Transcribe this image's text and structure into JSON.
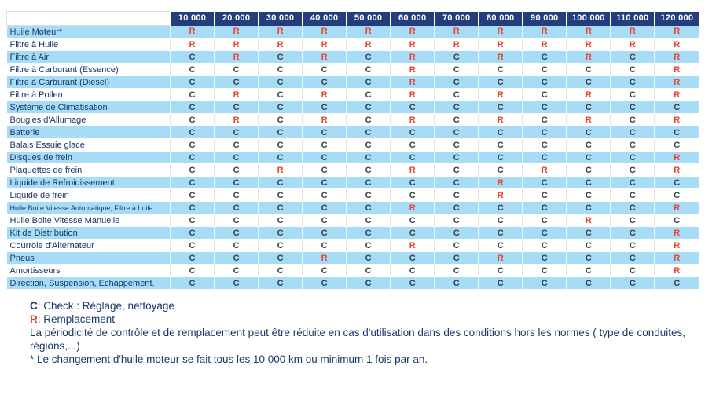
{
  "table": {
    "columns": [
      "10 000",
      "20 000",
      "30 000",
      "40 000",
      "50 000",
      "60 000",
      "70 000",
      "80 000",
      "90 000",
      "100 000",
      "110 000",
      "120 000"
    ],
    "rows": [
      {
        "label": "Huile Moteur*",
        "values": [
          "R",
          "R",
          "R",
          "R",
          "R",
          "R",
          "R",
          "R",
          "R",
          "R",
          "R",
          "R"
        ]
      },
      {
        "label": "Filtre à Huile",
        "values": [
          "R",
          "R",
          "R",
          "R",
          "R",
          "R",
          "R",
          "R",
          "R",
          "R",
          "R",
          "R"
        ]
      },
      {
        "label": "Filtre à Air",
        "values": [
          "C",
          "R",
          "C",
          "R",
          "C",
          "R",
          "C",
          "R",
          "C",
          "R",
          "C",
          "R"
        ]
      },
      {
        "label": "Filtre à Carburant (Essence)",
        "values": [
          "C",
          "C",
          "C",
          "C",
          "C",
          "R",
          "C",
          "C",
          "C",
          "C",
          "C",
          "R"
        ]
      },
      {
        "label": "Filtre à Carburant (Diesel)",
        "values": [
          "C",
          "C",
          "C",
          "C",
          "C",
          "R",
          "C",
          "C",
          "C",
          "C",
          "C",
          "R"
        ]
      },
      {
        "label": "Filtre à Pollen",
        "values": [
          "C",
          "R",
          "C",
          "R",
          "C",
          "R",
          "C",
          "R",
          "C",
          "R",
          "C",
          "R"
        ]
      },
      {
        "label": "Système de Climatisation",
        "values": [
          "C",
          "C",
          "C",
          "C",
          "C",
          "C",
          "C",
          "C",
          "C",
          "C",
          "C",
          "C"
        ]
      },
      {
        "label": "Bougies d'Allumage",
        "values": [
          "C",
          "R",
          "C",
          "R",
          "C",
          "R",
          "C",
          "R",
          "C",
          "R",
          "C",
          "R"
        ]
      },
      {
        "label": "Batterie",
        "values": [
          "C",
          "C",
          "C",
          "C",
          "C",
          "C",
          "C",
          "C",
          "C",
          "C",
          "C",
          "C"
        ]
      },
      {
        "label": "Balais Essuie glace",
        "values": [
          "C",
          "C",
          "C",
          "C",
          "C",
          "C",
          "C",
          "C",
          "C",
          "C",
          "C",
          "C"
        ]
      },
      {
        "label": "Disques de frein",
        "values": [
          "C",
          "C",
          "C",
          "C",
          "C",
          "C",
          "C",
          "C",
          "C",
          "C",
          "C",
          "R"
        ]
      },
      {
        "label": "Plaquettes de frein",
        "values": [
          "C",
          "C",
          "R",
          "C",
          "C",
          "R",
          "C",
          "C",
          "R",
          "C",
          "C",
          "R"
        ]
      },
      {
        "label": "Liquide de Refroidissement",
        "values": [
          "C",
          "C",
          "C",
          "C",
          "C",
          "C",
          "C",
          "R",
          "C",
          "C",
          "C",
          "C"
        ]
      },
      {
        "label": "Liquide de frein",
        "values": [
          "C",
          "C",
          "C",
          "C",
          "C",
          "C",
          "C",
          "R",
          "C",
          "C",
          "C",
          "C"
        ]
      },
      {
        "label": "Huile Boite Vitesse Automatique, Filtre à huile",
        "values": [
          "C",
          "C",
          "C",
          "C",
          "C",
          "R",
          "C",
          "C",
          "C",
          "C",
          "C",
          "R"
        ]
      },
      {
        "label": "Huile Boite Vitesse Manuelle",
        "values": [
          "C",
          "C",
          "C",
          "C",
          "C",
          "C",
          "C",
          "C",
          "C",
          "R",
          "C",
          "C"
        ]
      },
      {
        "label": "Kit de Distribution",
        "values": [
          "C",
          "C",
          "C",
          "C",
          "C",
          "C",
          "C",
          "C",
          "C",
          "C",
          "C",
          "R"
        ]
      },
      {
        "label": "Courroie d'Alternateur",
        "values": [
          "C",
          "C",
          "C",
          "C",
          "C",
          "R",
          "C",
          "C",
          "C",
          "C",
          "C",
          "R"
        ]
      },
      {
        "label": "Pneus",
        "values": [
          "C",
          "C",
          "C",
          "R",
          "C",
          "C",
          "C",
          "R",
          "C",
          "C",
          "C",
          "R"
        ]
      },
      {
        "label": "Amortisseurs",
        "values": [
          "C",
          "C",
          "C",
          "C",
          "C",
          "C",
          "C",
          "C",
          "C",
          "C",
          "C",
          "R"
        ]
      },
      {
        "label": "Direction, Suspension, Echappement.",
        "values": [
          "C",
          "C",
          "C",
          "C",
          "C",
          "C",
          "C",
          "C",
          "C",
          "C",
          "C",
          "C"
        ]
      }
    ]
  },
  "cell_codes": {
    "check": "C",
    "replace": "R"
  },
  "legend": {
    "check_symbol": "C",
    "check_text": ": Check : Réglage, nettoyage",
    "replace_symbol": "R",
    "replace_text": ": Remplacement",
    "note_periodicity": "La périodicité de contrôle et de remplacement peut être réduite en cas d'utilisation dans des conditions hors les normes ( type de conduites, régions,...)",
    "note_oil_change": "* Le changement d'huile moteur se fait tous les 10 000 km ou minimum 1 fois par an."
  },
  "colors": {
    "header_bg": "#243d7d",
    "row_alt_bg": "#a7dcf7",
    "check": "#3a3f45",
    "replace": "#e8432e",
    "text": "#1b3668"
  }
}
